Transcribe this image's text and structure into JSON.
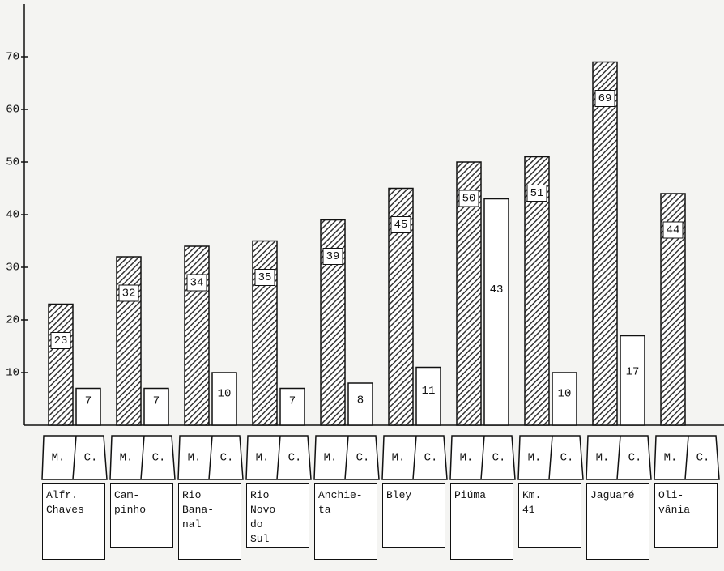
{
  "chart_data": {
    "type": "bar",
    "categories": [
      "Alfr.\nChaves",
      "Cam-\npinho",
      "Rio\nBana-\nnal",
      "Rio\nNovo\ndo\nSul",
      "Anchie-\nta",
      "Bley",
      "Piúma",
      "Km.\n41",
      "Jaguaré",
      "Oli-\nvânia"
    ],
    "series": [
      {
        "name": "M.",
        "color": "#333333",
        "hatch": true,
        "values": [
          23,
          32,
          34,
          35,
          39,
          45,
          50,
          51,
          69,
          44
        ]
      },
      {
        "name": "C.",
        "color": "#ffffff",
        "hatch": false,
        "values": [
          7,
          7,
          10,
          7,
          8,
          11,
          43,
          10,
          17,
          null
        ]
      }
    ],
    "ylim": [
      0,
      80
    ],
    "yticks": [
      10,
      20,
      30,
      40,
      50,
      60,
      70
    ]
  }
}
